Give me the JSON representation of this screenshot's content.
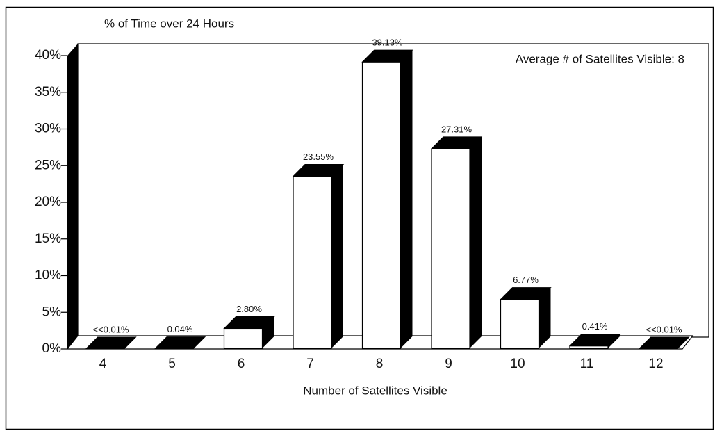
{
  "chart_data": {
    "type": "bar3d",
    "title": "% of Time over 24 Hours",
    "x_label": "Number of Satellites Visible",
    "annotation": "Average # of Satellites Visible: 8",
    "categories": [
      "4",
      "5",
      "6",
      "7",
      "8",
      "9",
      "10",
      "11",
      "12"
    ],
    "values": [
      0,
      0.04,
      2.8,
      23.55,
      39.13,
      27.31,
      6.77,
      0.41,
      0
    ],
    "value_labels": [
      "<<0.01%",
      "0.04%",
      "2.80%",
      "23.55%",
      "39.13%",
      "27.31%",
      "6.77%",
      "0.41%",
      "<<0.01%"
    ],
    "color": "#ffffff",
    "side_color": "#000000",
    "ylim": [
      0,
      40
    ],
    "yticks": [
      {
        "value": 0,
        "label": "0%"
      },
      {
        "value": 5,
        "label": "5%"
      },
      {
        "value": 10,
        "label": "10%"
      },
      {
        "value": 15,
        "label": "15%"
      },
      {
        "value": 20,
        "label": "20%"
      },
      {
        "value": 25,
        "label": "25%"
      },
      {
        "value": 30,
        "label": "30%"
      },
      {
        "value": 35,
        "label": "35%"
      },
      {
        "value": 40,
        "label": "40%"
      }
    ]
  }
}
